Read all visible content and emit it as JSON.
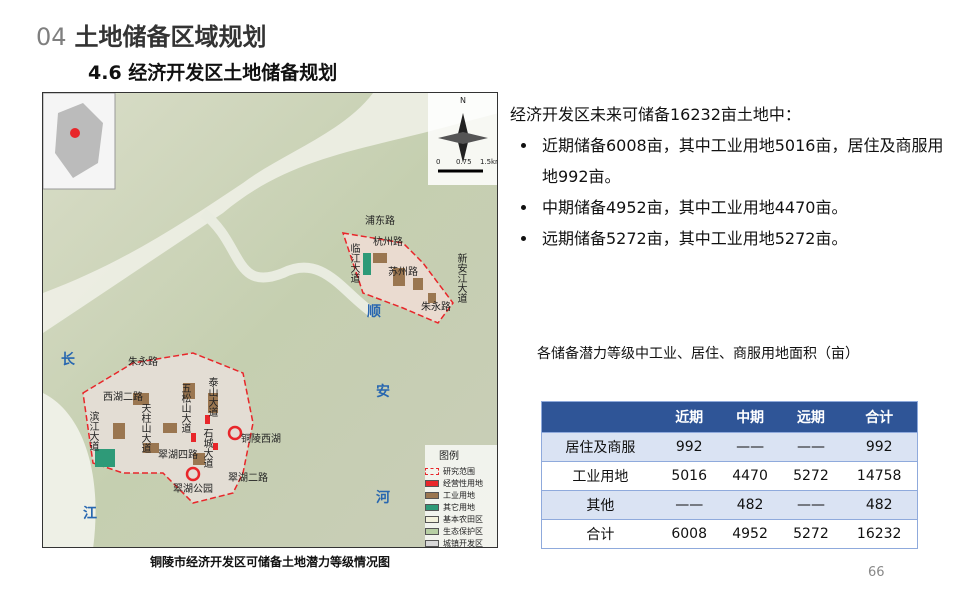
{
  "header": {
    "section_number": "04",
    "title": "土地储备区域规划"
  },
  "subtitle": "4.6 经济开发区土地储备规划",
  "map": {
    "labels": [
      "浦东路",
      "杭州路",
      "临江大道",
      "苏州路",
      "新安江大道",
      "朱永路",
      "顺",
      "安",
      "河",
      "长",
      "江",
      "朱永路",
      "泰山大道",
      "五松山大道",
      "西湖二路",
      "天柱山大道",
      "滨江大道",
      "石城大道",
      "翠湖四路",
      "翠湖二路",
      "翠湖公园",
      "铜陵西湖"
    ],
    "compass": "N",
    "scale": [
      "0",
      "0.75",
      "1.5",
      "km"
    ],
    "legend": {
      "title": "图例",
      "items": [
        {
          "name": "研究范围",
          "color": "#e8262a"
        },
        {
          "name": "经营性用地",
          "color": "#e8262a"
        },
        {
          "name": "工业用地",
          "color": "#9a7650"
        },
        {
          "name": "其它用地",
          "color": "#2e9a78"
        },
        {
          "name": "基本农田区",
          "color": "#f2f1dc"
        },
        {
          "name": "生态保护区",
          "color": "#b7cfa4"
        },
        {
          "name": "城镇开发区",
          "color": "#d8d8d8"
        }
      ]
    }
  },
  "caption": "铜陵市经济开发区可储备土地潜力等级情况图",
  "text": {
    "intro": "经济开发区未来可储备16232亩土地中：",
    "bullets": [
      "近期储备6008亩，其中工业用地5016亩，居住及商服用地992亩。",
      "中期储备4952亩，其中工业用地4470亩。",
      "远期储备5272亩，其中工业用地5272亩。"
    ]
  },
  "table": {
    "caption": "各储备潜力等级中工业、居住、商服用地面积（亩）",
    "header": [
      "",
      "近期",
      "中期",
      "远期",
      "合计"
    ],
    "rows": [
      [
        "居住及商服",
        "992",
        "——",
        "——",
        "992"
      ],
      [
        "工业用地",
        "5016",
        "4470",
        "5272",
        "14758"
      ],
      [
        "其他",
        "——",
        "482",
        "——",
        "482"
      ],
      [
        "合计",
        "6008",
        "4952",
        "5272",
        "16232"
      ]
    ]
  },
  "page_number": "66"
}
